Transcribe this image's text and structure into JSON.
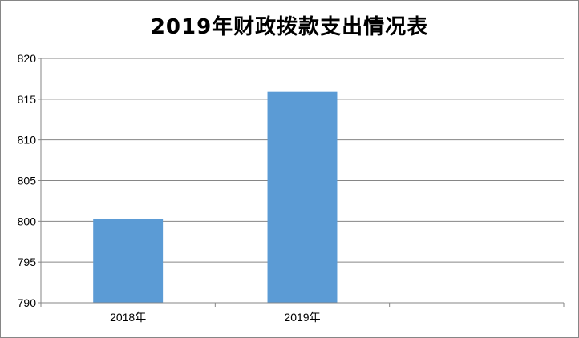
{
  "chart_data": {
    "type": "bar",
    "title": "2019年财政拨款支出情况表",
    "categories": [
      "2018年",
      "2019年",
      ""
    ],
    "values": [
      800.3,
      815.9,
      null
    ],
    "ylim": [
      790,
      820
    ],
    "yticks": [
      790,
      795,
      800,
      805,
      810,
      815,
      820
    ],
    "xlabel": "",
    "ylabel": "",
    "grid": true,
    "legend": "none",
    "colors": {
      "bar": "#5B9BD5",
      "grid": "#868686",
      "axis": "#868686",
      "border": "#868686"
    }
  }
}
